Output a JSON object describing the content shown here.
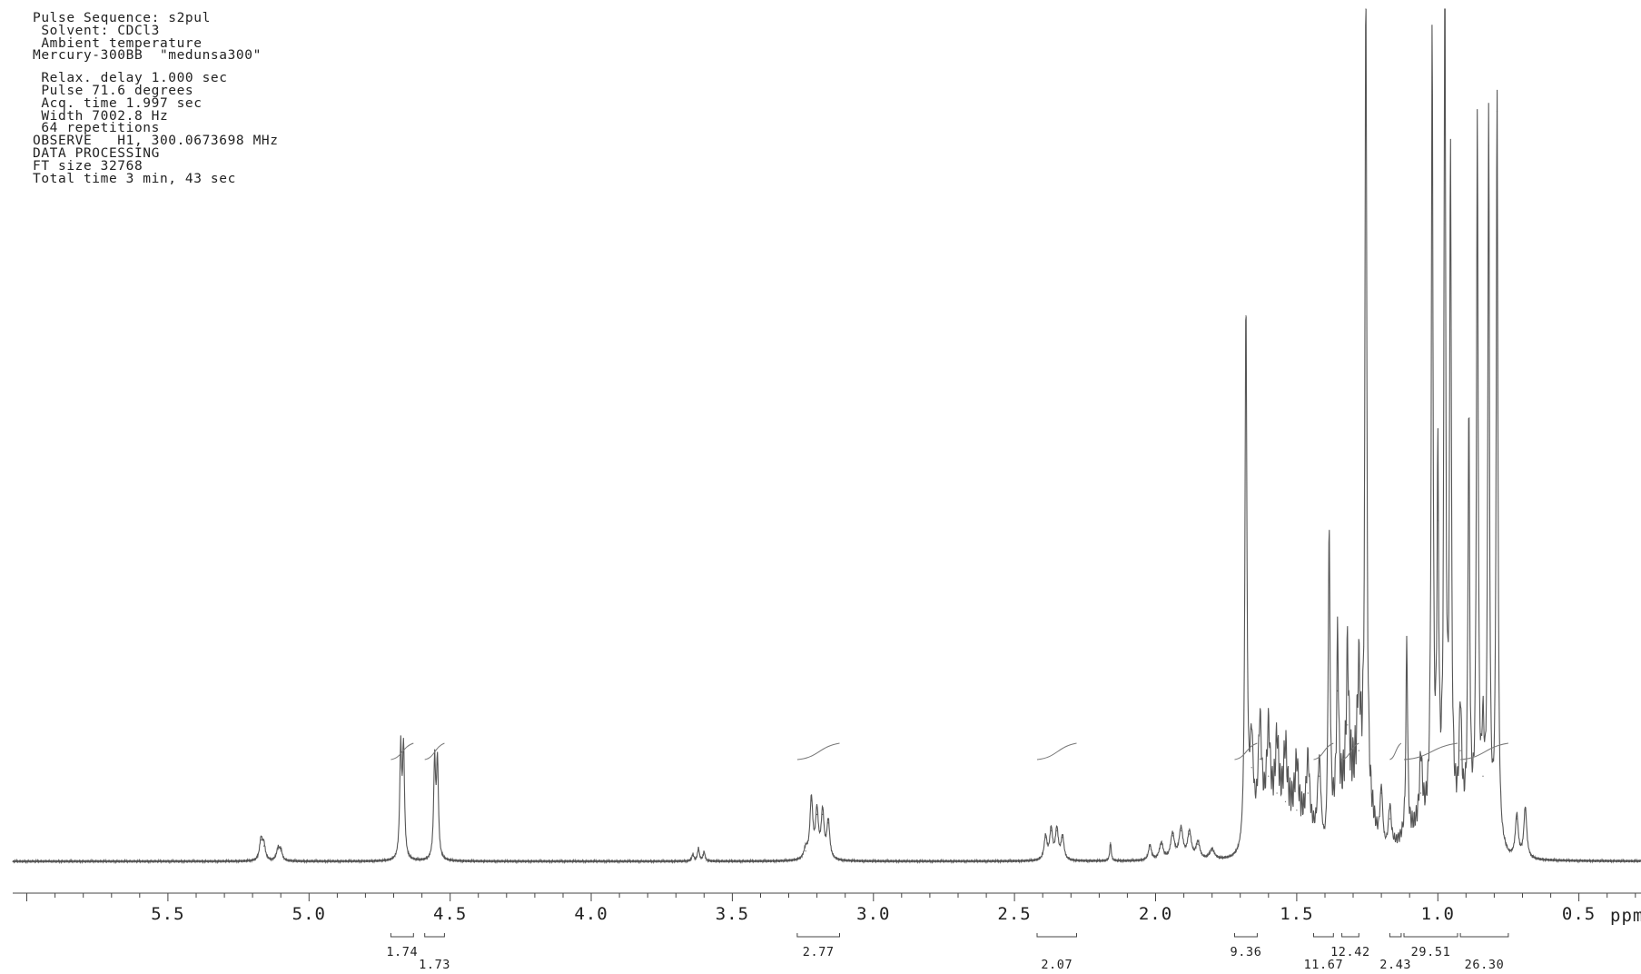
{
  "header": {
    "lines": [
      "Pulse Sequence: s2pul",
      " Solvent: CDCl3",
      " Ambient temperature",
      "Mercury-300BB  \"medunsa300\"",
      "",
      " Relax. delay 1.000 sec",
      " Pulse 71.6 degrees",
      " Acq. time 1.997 sec",
      " Width 7002.8 Hz",
      " 64 repetitions",
      "OBSERVE   H1, 300.0673698 MHz",
      "DATA PROCESSING",
      "FT size 32768",
      "Total time 3 min, 43 sec"
    ]
  },
  "chart_data": {
    "type": "line",
    "xlabel": "ppm",
    "x_reversed": true,
    "xlim": [
      6.0,
      0.2
    ],
    "x_ticks": [
      "5.5",
      "5.0",
      "4.5",
      "4.0",
      "3.5",
      "3.0",
      "2.5",
      "2.0",
      "1.5",
      "1.0",
      "0.5"
    ],
    "grid": false,
    "legend": "none",
    "line_color": "#555555",
    "peaks": [
      {
        "ppm": 5.17,
        "height": 0.025,
        "width": 0.006
      },
      {
        "ppm": 5.16,
        "height": 0.018,
        "width": 0.006
      },
      {
        "ppm": 5.11,
        "height": 0.014,
        "width": 0.006
      },
      {
        "ppm": 5.1,
        "height": 0.012,
        "width": 0.006
      },
      {
        "ppm": 4.675,
        "height": 0.128,
        "width": 0.004
      },
      {
        "ppm": 4.665,
        "height": 0.128,
        "width": 0.004
      },
      {
        "ppm": 4.555,
        "height": 0.114,
        "width": 0.004
      },
      {
        "ppm": 4.545,
        "height": 0.114,
        "width": 0.004
      },
      {
        "ppm": 3.62,
        "height": 0.015,
        "width": 0.004
      },
      {
        "ppm": 3.6,
        "height": 0.011,
        "width": 0.004
      },
      {
        "ppm": 3.64,
        "height": 0.008,
        "width": 0.004
      },
      {
        "ppm": 3.22,
        "height": 0.071,
        "width": 0.006
      },
      {
        "ppm": 3.2,
        "height": 0.055,
        "width": 0.006
      },
      {
        "ppm": 3.18,
        "height": 0.055,
        "width": 0.006
      },
      {
        "ppm": 3.16,
        "height": 0.045,
        "width": 0.006
      },
      {
        "ppm": 3.24,
        "height": 0.012,
        "width": 0.008
      },
      {
        "ppm": 2.39,
        "height": 0.028,
        "width": 0.006
      },
      {
        "ppm": 2.37,
        "height": 0.036,
        "width": 0.006
      },
      {
        "ppm": 2.35,
        "height": 0.036,
        "width": 0.006
      },
      {
        "ppm": 2.33,
        "height": 0.028,
        "width": 0.006
      },
      {
        "ppm": 2.16,
        "height": 0.022,
        "width": 0.003
      },
      {
        "ppm": 2.02,
        "height": 0.018,
        "width": 0.006
      },
      {
        "ppm": 1.98,
        "height": 0.02,
        "width": 0.008
      },
      {
        "ppm": 1.94,
        "height": 0.03,
        "width": 0.008
      },
      {
        "ppm": 1.91,
        "height": 0.036,
        "width": 0.008
      },
      {
        "ppm": 1.88,
        "height": 0.032,
        "width": 0.008
      },
      {
        "ppm": 1.85,
        "height": 0.02,
        "width": 0.008
      },
      {
        "ppm": 1.8,
        "height": 0.012,
        "width": 0.01
      },
      {
        "ppm": 1.68,
        "height": 0.64,
        "width": 0.004
      },
      {
        "ppm": 1.66,
        "height": 0.11,
        "width": 0.007
      },
      {
        "ppm": 1.63,
        "height": 0.12,
        "width": 0.007
      },
      {
        "ppm": 1.6,
        "height": 0.1,
        "width": 0.007
      },
      {
        "ppm": 1.57,
        "height": 0.08,
        "width": 0.007
      },
      {
        "ppm": 1.54,
        "height": 0.07,
        "width": 0.007
      },
      {
        "ppm": 1.5,
        "height": 0.06,
        "width": 0.007
      },
      {
        "ppm": 1.46,
        "height": 0.08,
        "width": 0.007
      },
      {
        "ppm": 1.42,
        "height": 0.1,
        "width": 0.007
      },
      {
        "ppm": 1.385,
        "height": 0.36,
        "width": 0.004
      },
      {
        "ppm": 1.355,
        "height": 0.2,
        "width": 0.004
      },
      {
        "ppm": 1.32,
        "height": 0.16,
        "width": 0.005
      },
      {
        "ppm": 1.28,
        "height": 0.13,
        "width": 0.006
      },
      {
        "ppm": 1.255,
        "height": 1.0,
        "width": 0.0035
      },
      {
        "ppm": 1.2,
        "height": 0.08,
        "width": 0.006
      },
      {
        "ppm": 1.17,
        "height": 0.05,
        "width": 0.006
      },
      {
        "ppm": 1.11,
        "height": 0.23,
        "width": 0.0035
      },
      {
        "ppm": 1.06,
        "height": 0.08,
        "width": 0.006
      },
      {
        "ppm": 1.02,
        "height": 0.92,
        "width": 0.0035
      },
      {
        "ppm": 1.0,
        "height": 0.4,
        "width": 0.0035
      },
      {
        "ppm": 0.975,
        "height": 1.0,
        "width": 0.0035
      },
      {
        "ppm": 0.955,
        "height": 0.78,
        "width": 0.0035
      },
      {
        "ppm": 0.92,
        "height": 0.13,
        "width": 0.005
      },
      {
        "ppm": 0.89,
        "height": 0.48,
        "width": 0.0035
      },
      {
        "ppm": 0.86,
        "height": 0.82,
        "width": 0.0035
      },
      {
        "ppm": 0.82,
        "height": 0.84,
        "width": 0.0035
      },
      {
        "ppm": 0.79,
        "height": 0.88,
        "width": 0.0035
      },
      {
        "ppm": 0.84,
        "height": 0.1,
        "width": 0.005
      },
      {
        "ppm": 0.72,
        "height": 0.05,
        "width": 0.006
      },
      {
        "ppm": 0.69,
        "height": 0.06,
        "width": 0.006
      }
    ],
    "humps": [
      {
        "from": 1.69,
        "to": 1.4,
        "height": 0.08
      },
      {
        "from": 1.4,
        "to": 1.2,
        "height": 0.12
      },
      {
        "from": 1.2,
        "to": 0.75,
        "height": 0.06
      }
    ],
    "integrals": [
      {
        "from": 4.71,
        "to": 4.63,
        "value": "1.74",
        "label_row": 1
      },
      {
        "from": 4.59,
        "to": 4.52,
        "value": "1.73",
        "label_row": 2
      },
      {
        "from": 3.27,
        "to": 3.12,
        "value": "2.77",
        "label_row": 1
      },
      {
        "from": 2.42,
        "to": 2.28,
        "value": "2.07",
        "label_row": 2
      },
      {
        "from": 1.72,
        "to": 1.64,
        "value": "9.36",
        "label_row": 1
      },
      {
        "from": 1.44,
        "to": 1.37,
        "value": "11.67",
        "label_row": 2
      },
      {
        "from": 1.34,
        "to": 1.28,
        "value": "12.42",
        "label_row": 1
      },
      {
        "from": 1.17,
        "to": 1.13,
        "value": "2.43",
        "label_row": 2
      },
      {
        "from": 1.12,
        "to": 0.93,
        "value": "29.51",
        "label_row": 1
      },
      {
        "from": 0.92,
        "to": 0.75,
        "value": "26.30",
        "label_row": 2
      }
    ]
  }
}
